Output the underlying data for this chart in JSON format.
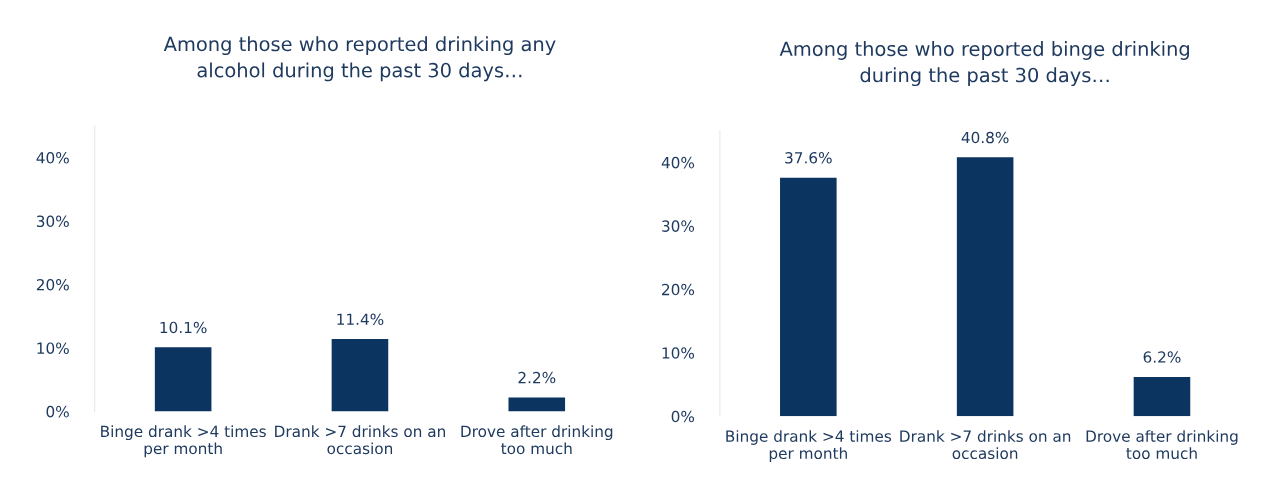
{
  "chart_data": [
    {
      "type": "bar",
      "title": "Among those who reported drinking any\nalcohol during the past 30 days…",
      "categories": [
        "Binge drank >4 times\nper month",
        "Drank >7 drinks on an\noccasion",
        "Drove after drinking\ntoo much"
      ],
      "values": [
        10.1,
        11.4,
        2.2
      ],
      "color": "#0b3560",
      "value_labels": [
        "10.1%",
        "11.4%",
        "2.2%"
      ],
      "ylim": [
        0,
        45
      ],
      "yticks": [
        {
          "value": 0,
          "label": "0%"
        },
        {
          "value": 10,
          "label": "10%"
        },
        {
          "value": 20,
          "label": "20%"
        },
        {
          "value": 30,
          "label": "30%"
        },
        {
          "value": 40,
          "label": "40%"
        }
      ],
      "grid": false
    },
    {
      "type": "bar",
      "title": "Among those who reported binge drinking\nduring the past 30 days…",
      "categories": [
        "Binge drank >4 times\nper month",
        "Drank >7 drinks on an\noccasion",
        "Drove after drinking\ntoo much"
      ],
      "values": [
        37.6,
        40.8,
        6.2
      ],
      "color": "#0b3560",
      "value_labels": [
        "37.6%",
        "40.8%",
        "6.2%"
      ],
      "ylim": [
        0,
        45
      ],
      "yticks": [
        {
          "value": 0,
          "label": "0%"
        },
        {
          "value": 10,
          "label": "10%"
        },
        {
          "value": 20,
          "label": "20%"
        },
        {
          "value": 30,
          "label": "30%"
        },
        {
          "value": 40,
          "label": "40%"
        }
      ],
      "grid": false
    }
  ]
}
